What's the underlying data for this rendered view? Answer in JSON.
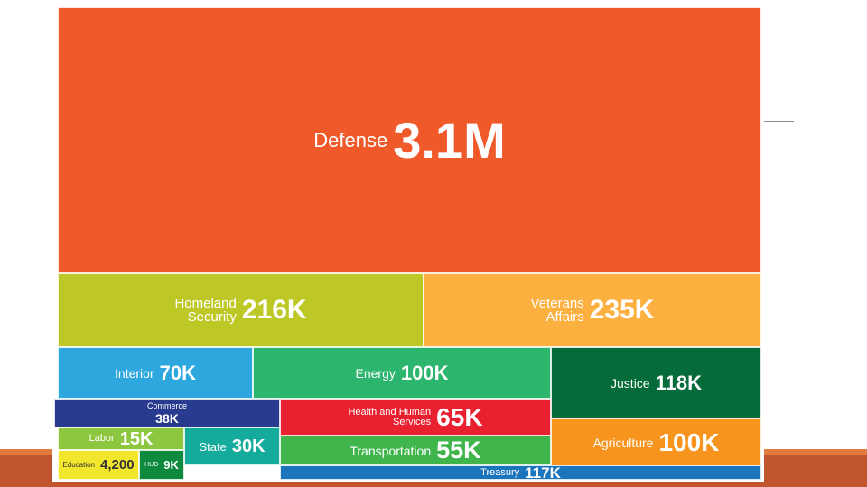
{
  "chart_data": {
    "type": "treemap",
    "title": "",
    "items": [
      {
        "id": "defense",
        "name": "Defense",
        "value_label": "3.1M",
        "value": 3100000,
        "color": "#f05a2b"
      },
      {
        "id": "homeland",
        "name": "Homeland\nSecurity",
        "value_label": "216K",
        "value": 216000,
        "color": "#bdc826"
      },
      {
        "id": "veterans",
        "name": "Veterans\nAffairs",
        "value_label": "235K",
        "value": 235000,
        "color": "#fbb03f"
      },
      {
        "id": "interior",
        "name": "Interior",
        "value_label": "70K",
        "value": 70000,
        "color": "#2ea7df"
      },
      {
        "id": "energy",
        "name": "Energy",
        "value_label": "100K",
        "value": 100000,
        "color": "#2cb56d"
      },
      {
        "id": "justice",
        "name": "Justice",
        "value_label": "118K",
        "value": 118000,
        "color": "#066b3b"
      },
      {
        "id": "commerce",
        "name": "Commerce",
        "value_label": "38K",
        "value": 38000,
        "color": "#283b8f"
      },
      {
        "id": "hhs",
        "name": "Health and Human\nServices",
        "value_label": "65K",
        "value": 65000,
        "color": "#e8202f"
      },
      {
        "id": "labor",
        "name": "Labor",
        "value_label": "15K",
        "value": 15000,
        "color": "#8dc63f"
      },
      {
        "id": "state",
        "name": "State",
        "value_label": "30K",
        "value": 30000,
        "color": "#14aa9c"
      },
      {
        "id": "transportation",
        "name": "Transportation",
        "value_label": "55K",
        "value": 55000,
        "color": "#3fb54b"
      },
      {
        "id": "agriculture",
        "name": "Agriculture",
        "value_label": "100K",
        "value": 100000,
        "color": "#f7941d"
      },
      {
        "id": "education",
        "name": "Education",
        "value_label": "4,200",
        "value": 4200,
        "color": "#f2e62c"
      },
      {
        "id": "hud",
        "name": "HUD",
        "value_label": "9K",
        "value": 9000,
        "color": "#0e8a3e"
      },
      {
        "id": "treasury",
        "name": "Treasury",
        "value_label": "117K",
        "value": 117000,
        "color": "#1a75bc"
      }
    ]
  }
}
